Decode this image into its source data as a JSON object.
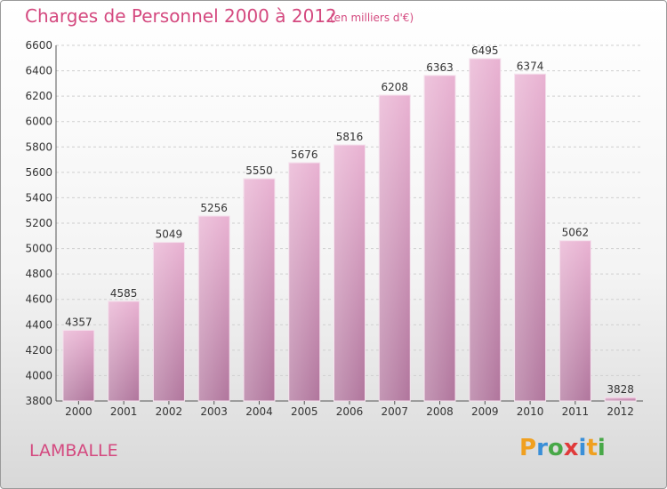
{
  "header": {
    "title": "Charges de Personnel 2000 à 2012",
    "subtitle": "(en milliers d'€)"
  },
  "footer": {
    "town": "LAMBALLE",
    "brand": "Proxiti",
    "brand_letters": [
      {
        "char": "P",
        "color": "#f0a020"
      },
      {
        "char": "r",
        "color": "#3a8fd8"
      },
      {
        "char": "o",
        "color": "#48a848"
      },
      {
        "char": "x",
        "color": "#e03a3a"
      },
      {
        "char": "i",
        "color": "#3a8fd8"
      },
      {
        "char": "t",
        "color": "#f0a020"
      },
      {
        "char": "i",
        "color": "#48a848"
      }
    ]
  },
  "colors": {
    "bar_light": "#e8b0d0",
    "bar_dark": "#b0759c",
    "grid": "#cfcfcf",
    "accent": "#d4497f"
  },
  "chart_data": {
    "type": "bar",
    "title": "Charges de Personnel 2000 à 2012",
    "subtitle": "(en milliers d'€)",
    "categories": [
      "2000",
      "2001",
      "2002",
      "2003",
      "2004",
      "2005",
      "2006",
      "2007",
      "2008",
      "2009",
      "2010",
      "2011",
      "2012"
    ],
    "values": [
      4357,
      4585,
      5049,
      5256,
      5550,
      5676,
      5816,
      6208,
      6363,
      6495,
      6374,
      5062,
      3828
    ],
    "ylim": [
      3800,
      6600
    ],
    "yticks": [
      3800,
      4000,
      4200,
      4400,
      4600,
      4800,
      5000,
      5200,
      5400,
      5600,
      5800,
      6000,
      6200,
      6400,
      6600
    ],
    "grid": true
  }
}
